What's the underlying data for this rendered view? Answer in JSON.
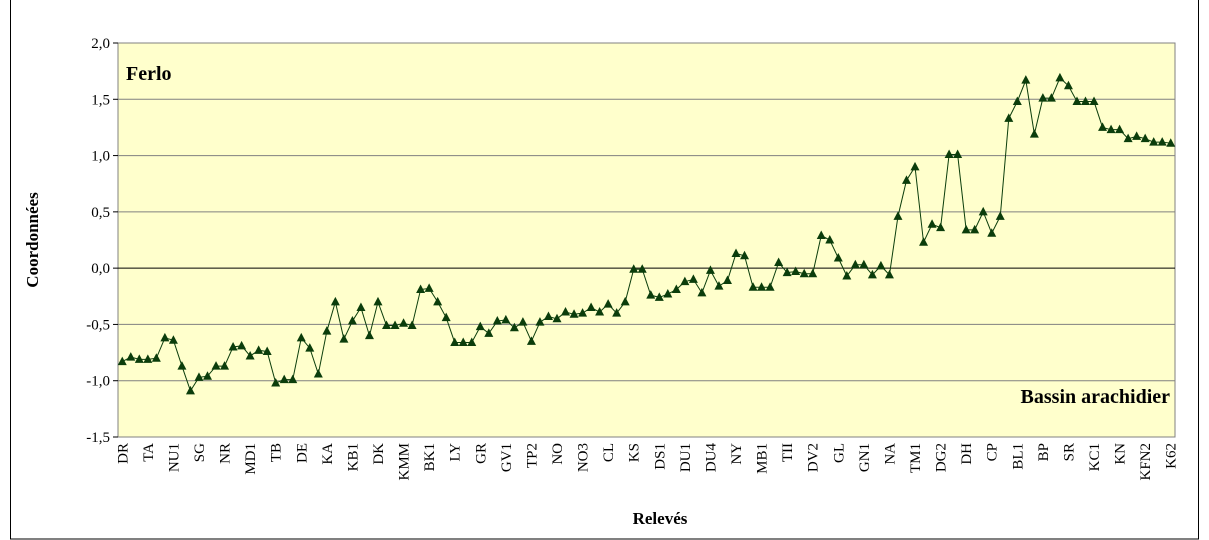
{
  "chart_data": {
    "type": "line",
    "x_label": "Relevés",
    "y_label": "Coordonnées",
    "annotations": [
      "Ferlo",
      "Bassin arachidier"
    ],
    "categories": [
      "DR",
      null,
      null,
      "TA",
      null,
      null,
      "NU1",
      null,
      null,
      "SG",
      null,
      null,
      "NR",
      null,
      null,
      "MD1",
      null,
      null,
      "TB",
      null,
      null,
      "DE",
      null,
      null,
      "KA",
      null,
      null,
      "KB1",
      null,
      null,
      "DK",
      null,
      null,
      "KMM",
      null,
      null,
      "BK1",
      null,
      null,
      "LY",
      null,
      null,
      "GR",
      null,
      null,
      "GV1",
      null,
      null,
      "TP2",
      null,
      null,
      "NO",
      null,
      null,
      "NO3",
      null,
      null,
      "CL",
      null,
      null,
      "KS",
      null,
      null,
      "DS1",
      null,
      null,
      "DU1",
      null,
      null,
      "DU4",
      null,
      null,
      "NY",
      null,
      null,
      "MB1",
      null,
      null,
      "TII",
      null,
      null,
      "DV2",
      null,
      null,
      "GL",
      null,
      null,
      "GN1",
      null,
      null,
      "NA",
      null,
      null,
      "TM1",
      null,
      null,
      "DG2",
      null,
      null,
      "DH",
      null,
      null,
      "CP",
      null,
      null,
      "BL1",
      null,
      null,
      "BP",
      null,
      null,
      "SR",
      null,
      null,
      "KC1",
      null,
      null,
      "KN",
      null,
      null,
      "KFN2",
      null,
      null,
      "K62"
    ],
    "series": [
      {
        "name": "Coordonnées",
        "color": "#0b3d0b",
        "values": [
          -0.83,
          -0.79,
          -0.81,
          -0.81,
          -0.8,
          -0.62,
          -0.64,
          -0.87,
          -1.09,
          -0.97,
          -0.96,
          -0.87,
          -0.87,
          -0.7,
          -0.69,
          -0.78,
          -0.73,
          -0.74,
          -1.02,
          -0.99,
          -0.99,
          -0.62,
          -0.71,
          -0.94,
          -0.56,
          -0.3,
          -0.63,
          -0.47,
          -0.35,
          -0.6,
          -0.3,
          -0.51,
          -0.51,
          -0.49,
          -0.51,
          -0.19,
          -0.18,
          -0.3,
          -0.44,
          -0.66,
          -0.66,
          -0.66,
          -0.52,
          -0.58,
          -0.47,
          -0.46,
          -0.53,
          -0.48,
          -0.65,
          -0.48,
          -0.43,
          -0.45,
          -0.39,
          -0.41,
          -0.4,
          -0.35,
          -0.39,
          -0.32,
          -0.4,
          -0.3,
          -0.01,
          -0.01,
          -0.24,
          -0.26,
          -0.23,
          -0.19,
          -0.12,
          -0.1,
          -0.22,
          -0.02,
          -0.16,
          -0.11,
          0.13,
          0.11,
          -0.17,
          -0.17,
          -0.17,
          0.05,
          -0.04,
          -0.03,
          -0.05,
          -0.05,
          0.29,
          0.25,
          0.09,
          -0.07,
          0.03,
          0.03,
          -0.06,
          0.02,
          -0.06,
          0.46,
          0.78,
          0.9,
          0.23,
          0.39,
          0.36,
          1.01,
          1.01,
          0.34,
          0.34,
          0.5,
          0.31,
          0.46,
          1.33,
          1.48,
          1.67,
          1.19,
          1.51,
          1.51,
          1.69,
          1.62,
          1.48,
          1.48,
          1.48,
          1.25,
          1.23,
          1.23,
          1.15,
          1.17,
          1.15,
          1.12,
          1.12,
          1.11
        ]
      }
    ],
    "ylim": [
      -1.5,
      2
    ],
    "yticks": [
      {
        "value": -1.5,
        "label": "-1,5"
      },
      {
        "value": -1,
        "label": "-1,0"
      },
      {
        "value": -0.5,
        "label": "-0,5"
      },
      {
        "value": 0,
        "label": "0,0"
      },
      {
        "value": 0.5,
        "label": "0,5"
      },
      {
        "value": 1,
        "label": "1,0"
      },
      {
        "value": 1.5,
        "label": "1,5"
      },
      {
        "value": 2,
        "label": "2,0"
      }
    ],
    "grid": true,
    "background": "#ffffcc"
  }
}
